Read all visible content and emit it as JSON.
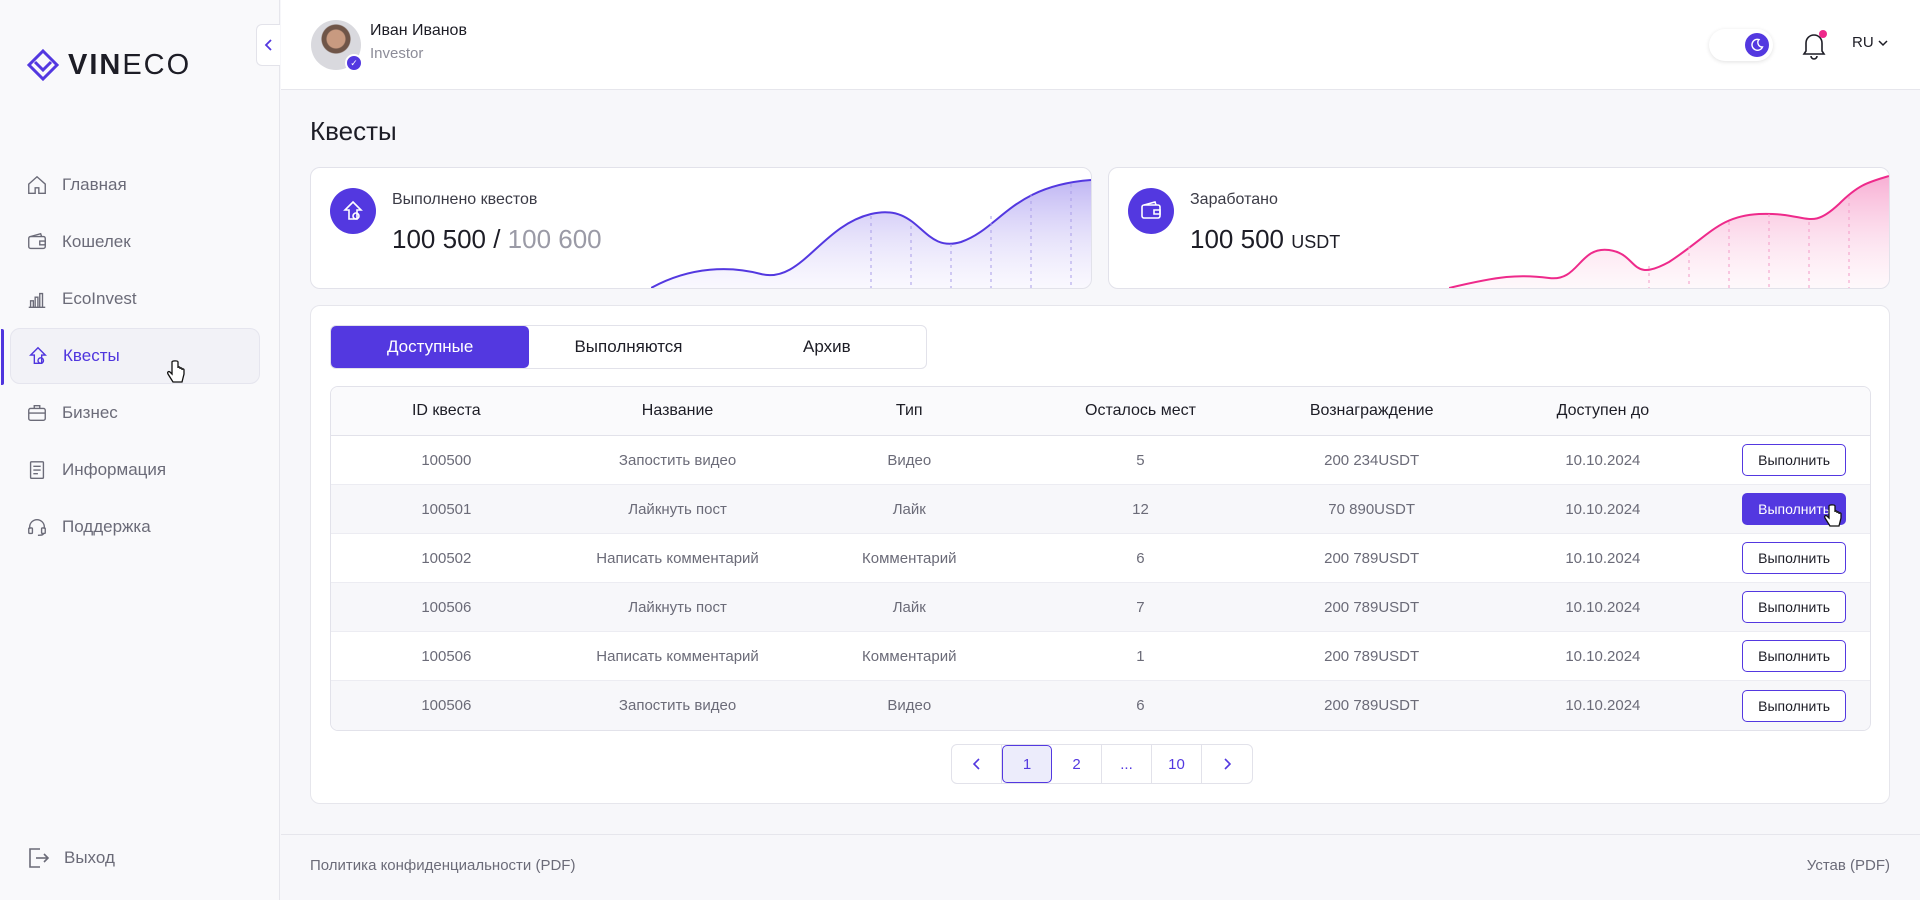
{
  "brand": {
    "bold": "VIN",
    "light": "ECO"
  },
  "nav": [
    {
      "label": "Главная",
      "icon": "home-icon"
    },
    {
      "label": "Кошелек",
      "icon": "wallet-icon"
    },
    {
      "label": "EcoInvest",
      "icon": "chart-bars-icon"
    },
    {
      "label": "Квесты",
      "icon": "quest-icon",
      "active": true
    },
    {
      "label": "Бизнес",
      "icon": "briefcase-icon"
    },
    {
      "label": "Информация",
      "icon": "document-icon"
    },
    {
      "label": "Поддержка",
      "icon": "headset-icon"
    }
  ],
  "logout_label": "Выход",
  "user": {
    "name": "Иван Иванов",
    "role": "Investor"
  },
  "lang": "RU",
  "page_title": "Квесты",
  "stats": {
    "quests_label": "Выполнено квестов",
    "quests_done": "100 500",
    "quests_sep": " / ",
    "quests_total": "100 600",
    "earned_label": "Заработано",
    "earned_value": "100 500",
    "earned_unit": "USDT"
  },
  "colors": {
    "accent": "#5338e0",
    "pink": "#ee2a8b"
  },
  "tabs": [
    "Доступные",
    "Выполняются",
    "Архив"
  ],
  "table": {
    "headers": [
      "ID квеста",
      "Название",
      "Тип",
      "Осталось мест",
      "Вознаграждение",
      "Доступен до"
    ],
    "action_label": "Выполнить",
    "rows": [
      {
        "id": "100500",
        "name": "Запостить видео",
        "type": "Видео",
        "left": "5",
        "reward": "200 234USDT",
        "until": "10.10.2024"
      },
      {
        "id": "100501",
        "name": "Лайкнуть пост",
        "type": "Лайк",
        "left": "12",
        "reward": "70 890USDT",
        "until": "10.10.2024"
      },
      {
        "id": "100502",
        "name": "Написать комментарий",
        "type": "Комментарий",
        "left": "6",
        "reward": "200 789USDT",
        "until": "10.10.2024"
      },
      {
        "id": "100506",
        "name": "Лайкнуть пост",
        "type": "Лайк",
        "left": "7",
        "reward": "200 789USDT",
        "until": "10.10.2024"
      },
      {
        "id": "100506",
        "name": "Написать комментарий",
        "type": "Комментарий",
        "left": "1",
        "reward": "200 789USDT",
        "until": "10.10.2024"
      },
      {
        "id": "100506",
        "name": "Запостить видео",
        "type": "Видео",
        "left": "6",
        "reward": "200 789USDT",
        "until": "10.10.2024"
      }
    ]
  },
  "pagination": {
    "pages": [
      "1",
      "2",
      "...",
      "10"
    ],
    "current": "1",
    "prev": "‹",
    "next": "›"
  },
  "footer": {
    "privacy": "Политика конфиденциальности (PDF)",
    "charter": "Устав (PDF)"
  }
}
